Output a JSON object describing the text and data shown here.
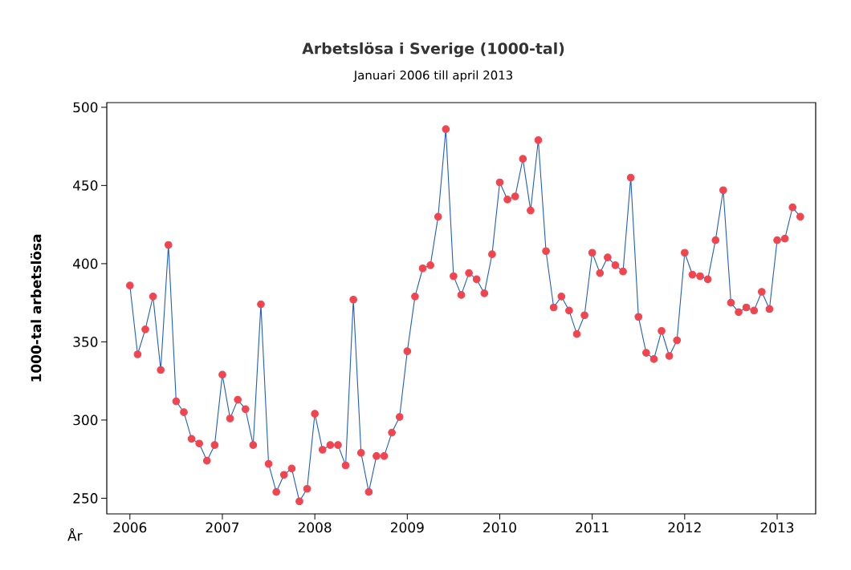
{
  "chart_data": {
    "type": "line",
    "title": "Arbetslösa i Sverige (1000-tal)",
    "subtitle": "Januari 2006 till april 2013",
    "xlabel": "År",
    "ylabel": "1000-tal arbetslösa",
    "x": [
      "2006-01",
      "2006-02",
      "2006-03",
      "2006-04",
      "2006-05",
      "2006-06",
      "2006-07",
      "2006-08",
      "2006-09",
      "2006-10",
      "2006-11",
      "2006-12",
      "2007-01",
      "2007-02",
      "2007-03",
      "2007-04",
      "2007-05",
      "2007-06",
      "2007-07",
      "2007-08",
      "2007-09",
      "2007-10",
      "2007-11",
      "2007-12",
      "2008-01",
      "2008-02",
      "2008-03",
      "2008-04",
      "2008-05",
      "2008-06",
      "2008-07",
      "2008-08",
      "2008-09",
      "2008-10",
      "2008-11",
      "2008-12",
      "2009-01",
      "2009-02",
      "2009-03",
      "2009-04",
      "2009-05",
      "2009-06",
      "2009-07",
      "2009-08",
      "2009-09",
      "2009-10",
      "2009-11",
      "2009-12",
      "2010-01",
      "2010-02",
      "2010-03",
      "2010-04",
      "2010-05",
      "2010-06",
      "2010-07",
      "2010-08",
      "2010-09",
      "2010-10",
      "2010-11",
      "2010-12",
      "2011-01",
      "2011-02",
      "2011-03",
      "2011-04",
      "2011-05",
      "2011-06",
      "2011-07",
      "2011-08",
      "2011-09",
      "2011-10",
      "2011-11",
      "2011-12",
      "2012-01",
      "2012-02",
      "2012-03",
      "2012-04",
      "2012-05",
      "2012-06",
      "2012-07",
      "2012-08",
      "2012-09",
      "2012-10",
      "2012-11",
      "2012-12",
      "2013-01",
      "2013-02",
      "2013-03",
      "2013-04"
    ],
    "series": [
      {
        "color": "#f0454f",
        "values": [
          386,
          342,
          358,
          379,
          332,
          412,
          312,
          305,
          288,
          285,
          274,
          284,
          329,
          301,
          313,
          307,
          284,
          374,
          272,
          254,
          265,
          269,
          248,
          256,
          304,
          281,
          284,
          284,
          271,
          377,
          279,
          254,
          277,
          277,
          292,
          302,
          344,
          379,
          397,
          399,
          430,
          486,
          392,
          380,
          394,
          390,
          381,
          406,
          452,
          441,
          443,
          467,
          434,
          479,
          408,
          372,
          379,
          370,
          355,
          367,
          407,
          394,
          404,
          399,
          395,
          455,
          366,
          343,
          339,
          357,
          341,
          351,
          407,
          393,
          392,
          390,
          415,
          447,
          375,
          369,
          372,
          370,
          382,
          371,
          415,
          416,
          436,
          430
        ]
      }
    ],
    "xlim": [
      "2005-10",
      "2013-06"
    ],
    "xticks": [
      "2006",
      "2007",
      "2008",
      "2009",
      "2010",
      "2011",
      "2012",
      "2013"
    ],
    "ylim": [
      240,
      503
    ],
    "yticks": [
      250,
      300,
      350,
      400,
      450,
      500
    ],
    "grid": false,
    "marker": "circle",
    "line_style": "solid"
  }
}
